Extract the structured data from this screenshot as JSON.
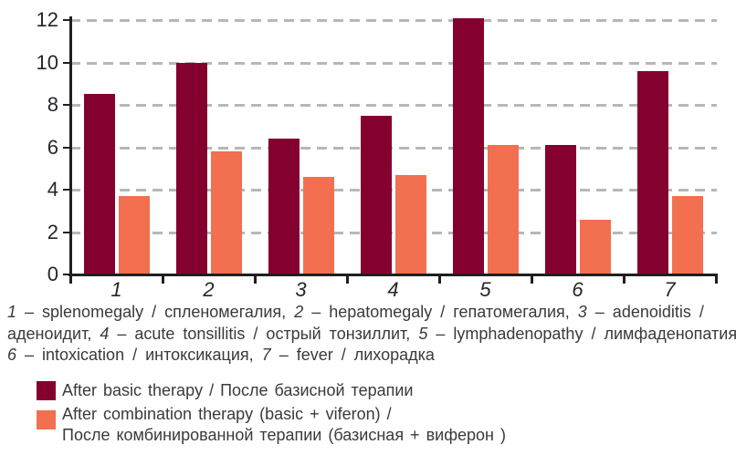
{
  "chart_data": {
    "type": "bar",
    "categories": [
      "1",
      "2",
      "3",
      "4",
      "5",
      "6",
      "7"
    ],
    "series": [
      {
        "name": "After basic therapy / После базисной терапии",
        "color": "#84002F",
        "values": [
          8.5,
          10.0,
          6.4,
          7.5,
          12.1,
          6.1,
          9.6
        ]
      },
      {
        "name": "After combination therapy (basic + viferon) / После комбинированной терапии (базисная + виферон )",
        "color": "#F2704F",
        "values": [
          3.7,
          5.8,
          4.6,
          4.7,
          6.1,
          2.6,
          3.7
        ]
      }
    ],
    "title": "",
    "xlabel": "",
    "ylabel": "",
    "ylim": [
      0,
      12
    ],
    "yticks": [
      0,
      2,
      4,
      6,
      8,
      10,
      12
    ],
    "grid": "dashed-horizontal",
    "legend_position": "bottom-left",
    "colors": {
      "grid": "#B7B7B9",
      "axis": "#1F1F1F",
      "tick_label": "#26262B",
      "text": "#3A3A3A"
    }
  },
  "caption": {
    "lines": [
      [
        {
          "text": "1",
          "italic": true
        },
        {
          "text": " – splenomegaly / спленомегалия, ",
          "italic": false
        },
        {
          "text": "2",
          "italic": true
        },
        {
          "text": " – hepatomegaly / гепатомегалия, ",
          "italic": false
        },
        {
          "text": "3",
          "italic": true
        },
        {
          "text": " – adenoiditis /",
          "italic": false
        }
      ],
      [
        {
          "text": "аденоидит, ",
          "italic": false
        },
        {
          "text": "4",
          "italic": true
        },
        {
          "text": " – acute tonsillitis / острый тонзиллит, ",
          "italic": false
        },
        {
          "text": "5",
          "italic": true
        },
        {
          "text": " – lymphadenopathy / лимфаденопатия,",
          "italic": false
        }
      ],
      [
        {
          "text": "6",
          "italic": true
        },
        {
          "text": " – intoxication / интоксикация, ",
          "italic": false
        },
        {
          "text": "7",
          "italic": true
        },
        {
          "text": " – fever / лихорадка",
          "italic": false
        }
      ]
    ]
  },
  "legend": {
    "items": [
      {
        "id": "basic-therapy",
        "color": "#84002F",
        "lines": [
          "After basic therapy / После базисной терапии"
        ]
      },
      {
        "id": "combination-therapy",
        "color": "#F2704F",
        "lines": [
          "After combination therapy (basic + viferon) /",
          "После комбинированной терапии (базисная + виферон )"
        ]
      }
    ]
  }
}
